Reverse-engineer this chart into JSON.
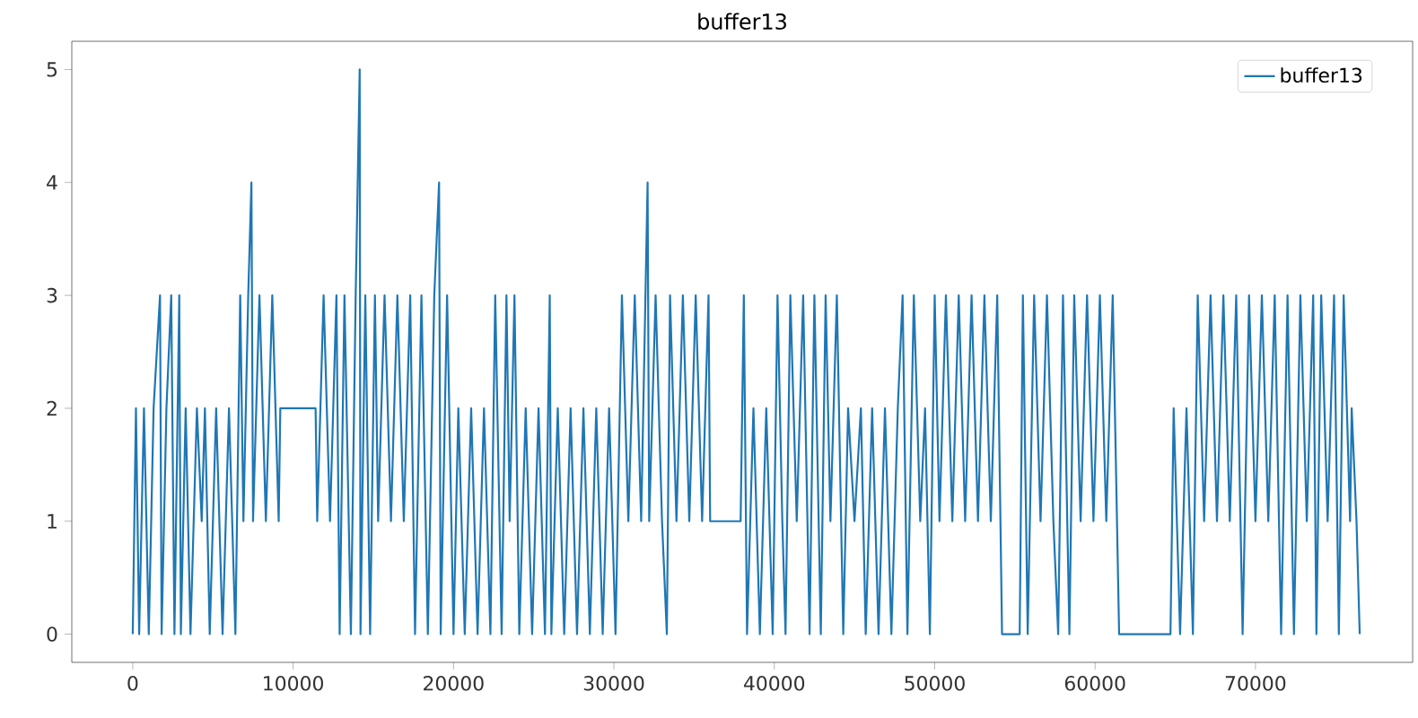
{
  "chart_data": {
    "type": "line",
    "title": "buffer13",
    "legend": "top right",
    "xlim": [
      -3800,
      79800
    ],
    "ylim": [
      -0.25,
      5.25
    ],
    "xticks": [
      0,
      10000,
      20000,
      30000,
      40000,
      50000,
      60000,
      70000
    ],
    "yticks": [
      0,
      1,
      2,
      3,
      4,
      5
    ],
    "series": [
      {
        "name": "buffer13",
        "color": "#1f77b4",
        "x": [
          0,
          200,
          400,
          700,
          1000,
          1300,
          1700,
          1800,
          2100,
          2400,
          2600,
          2900,
          3000,
          3300,
          3600,
          4000,
          4300,
          4500,
          4800,
          5200,
          5600,
          6000,
          6400,
          6700,
          6900,
          7200,
          7400,
          7500,
          7900,
          8300,
          8700,
          9100,
          9200,
          11400,
          11500,
          11900,
          12300,
          12700,
          12900,
          13200,
          13600,
          13900,
          14150,
          14200,
          14500,
          14800,
          15100,
          15300,
          15700,
          16100,
          16500,
          16900,
          17300,
          17600,
          18000,
          18400,
          18800,
          19100,
          19200,
          19600,
          20000,
          20300,
          20700,
          21100,
          21500,
          21900,
          22300,
          22600,
          23000,
          23300,
          23500,
          23800,
          24100,
          24500,
          24900,
          25300,
          25700,
          26000,
          26100,
          26500,
          26900,
          27300,
          27700,
          28100,
          28500,
          28900,
          29300,
          29700,
          30100,
          30500,
          30900,
          31300,
          31700,
          32100,
          32200,
          32600,
          33000,
          33300,
          33500,
          33900,
          34300,
          34700,
          35100,
          35500,
          35900,
          36000,
          37900,
          38100,
          38300,
          38700,
          39100,
          39500,
          39900,
          40200,
          40500,
          40700,
          41000,
          41400,
          41800,
          42200,
          42500,
          42900,
          43200,
          43500,
          43900,
          44300,
          44600,
          45000,
          45400,
          45700,
          46100,
          46500,
          46900,
          47300,
          47700,
          48000,
          48300,
          48700,
          49100,
          49400,
          49700,
          50000,
          50300,
          50700,
          51100,
          51500,
          51900,
          52300,
          52700,
          53100,
          53500,
          53900,
          54200,
          55300,
          55500,
          55800,
          56200,
          56600,
          57000,
          57400,
          57700,
          58000,
          58400,
          58700,
          59100,
          59500,
          59900,
          60300,
          60700,
          61100,
          61500,
          61900,
          64700,
          64900,
          65300,
          65700,
          66100,
          66400,
          66800,
          67200,
          67600,
          68000,
          68400,
          68800,
          69200,
          69600,
          70000,
          70400,
          70800,
          71200,
          71600,
          72000,
          72400,
          72800,
          73200,
          73600,
          73800,
          74100,
          74500,
          74900,
          75200,
          75500,
          75900,
          76000,
          76300,
          76500
        ],
        "values": [
          0,
          2,
          0,
          2,
          0,
          2,
          3,
          0,
          2,
          3,
          0,
          3,
          0,
          2,
          0,
          2,
          1,
          2,
          0,
          2,
          0,
          2,
          0,
          3,
          1,
          3,
          4,
          1,
          3,
          1,
          3,
          1,
          2,
          2,
          1,
          3,
          1,
          3,
          0,
          3,
          0,
          3,
          5,
          0,
          3,
          0,
          3,
          1,
          3,
          1,
          3,
          1,
          3,
          0,
          3,
          0,
          3,
          4,
          0,
          3,
          0,
          2,
          0,
          2,
          0,
          2,
          0,
          3,
          0,
          3,
          1,
          3,
          0,
          2,
          0,
          2,
          0,
          3,
          0,
          2,
          0,
          2,
          0,
          2,
          0,
          2,
          0,
          2,
          0,
          3,
          1,
          3,
          1,
          4,
          1,
          3,
          1,
          0,
          3,
          1,
          3,
          1,
          3,
          1,
          3,
          1,
          1,
          3,
          0,
          2,
          0,
          2,
          0,
          3,
          1,
          0,
          3,
          1,
          3,
          0,
          3,
          0,
          3,
          1,
          3,
          0,
          2,
          1,
          2,
          0,
          2,
          0,
          2,
          0,
          2,
          3,
          0,
          3,
          1,
          2,
          0,
          3,
          1,
          3,
          1,
          3,
          1,
          3,
          1,
          3,
          1,
          3,
          0,
          0,
          3,
          0,
          3,
          1,
          3,
          1,
          0,
          3,
          0,
          3,
          1,
          3,
          1,
          3,
          1,
          3,
          0,
          0,
          0,
          2,
          0,
          2,
          0,
          3,
          1,
          3,
          1,
          3,
          1,
          3,
          0,
          3,
          1,
          3,
          1,
          3,
          0,
          3,
          0,
          3,
          1,
          3,
          0,
          3,
          1,
          3,
          0,
          3,
          1,
          2,
          1,
          0
        ]
      }
    ]
  }
}
